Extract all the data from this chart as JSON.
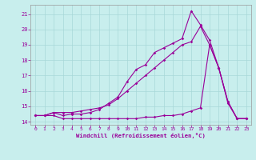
{
  "xlabel": "Windchill (Refroidissement éolien,°C)",
  "xlim": [
    -0.5,
    23.5
  ],
  "ylim": [
    13.8,
    21.6
  ],
  "yticks": [
    14,
    15,
    16,
    17,
    18,
    19,
    20,
    21
  ],
  "xticks": [
    0,
    1,
    2,
    3,
    4,
    5,
    6,
    7,
    8,
    9,
    10,
    11,
    12,
    13,
    14,
    15,
    16,
    17,
    18,
    19,
    20,
    21,
    22,
    23
  ],
  "bg_color": "#c8eeed",
  "line_color": "#990099",
  "grid_color": "#a8d8d8",
  "line1_x": [
    0,
    1,
    2,
    3,
    4,
    5,
    6,
    7,
    8,
    9,
    10,
    11,
    12,
    13,
    14,
    15,
    16,
    17,
    18,
    19,
    20,
    21,
    22,
    23
  ],
  "line1_y": [
    14.4,
    14.4,
    14.4,
    14.2,
    14.2,
    14.2,
    14.2,
    14.2,
    14.2,
    14.2,
    14.2,
    14.2,
    14.3,
    14.3,
    14.4,
    14.4,
    14.5,
    14.7,
    14.9,
    19.0,
    17.5,
    15.3,
    14.2,
    14.2
  ],
  "line2_x": [
    0,
    1,
    2,
    3,
    4,
    5,
    6,
    7,
    8,
    9,
    10,
    11,
    12,
    13,
    14,
    15,
    16,
    17,
    18,
    19,
    20,
    21,
    22,
    23
  ],
  "line2_y": [
    14.4,
    14.4,
    14.6,
    14.6,
    14.6,
    14.7,
    14.8,
    14.9,
    15.1,
    15.5,
    16.0,
    16.5,
    17.0,
    17.5,
    18.0,
    18.5,
    19.0,
    19.2,
    20.2,
    19.0,
    17.5,
    15.3,
    14.2,
    14.2
  ],
  "line3_x": [
    0,
    1,
    2,
    3,
    4,
    5,
    6,
    7,
    8,
    9,
    10,
    11,
    12,
    13,
    14,
    15,
    16,
    17,
    18,
    19,
    20,
    21,
    22,
    23
  ],
  "line3_y": [
    14.4,
    14.4,
    14.6,
    14.4,
    14.5,
    14.5,
    14.6,
    14.8,
    15.2,
    15.6,
    16.6,
    17.4,
    17.7,
    18.5,
    18.8,
    19.1,
    19.4,
    21.2,
    20.3,
    19.3,
    17.5,
    15.2,
    14.2,
    14.2
  ]
}
